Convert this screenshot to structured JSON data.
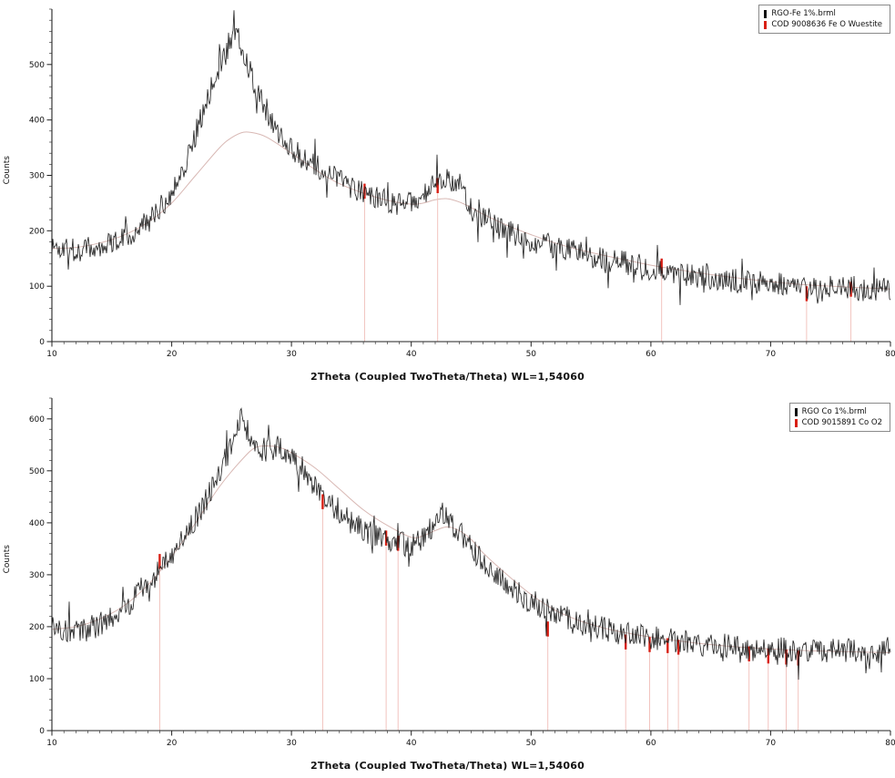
{
  "chart_data": [
    {
      "type": "line",
      "title": "",
      "xlabel": "2Theta (Coupled TwoTheta/Theta) WL=1,54060",
      "ylabel": "Counts",
      "xlim": [
        10,
        80
      ],
      "ylim": [
        0,
        600
      ],
      "x_ticks": [
        10,
        20,
        30,
        40,
        50,
        60,
        70,
        80
      ],
      "y_ticks": [
        0,
        100,
        200,
        300,
        400,
        500
      ],
      "grid": false,
      "legend_position": "top-right",
      "legend": [
        {
          "label": "RGO-Fe 1%.brml",
          "color": "#111111"
        },
        {
          "label": "COD 9008636 Fe O Wuestite",
          "color": "#d81f14"
        }
      ],
      "noise_amplitude": 22,
      "trace_envelope": {
        "x": [
          10,
          11,
          12,
          13,
          14,
          15,
          16,
          17,
          18,
          19,
          20,
          21,
          22,
          23,
          24,
          25,
          25.6,
          26,
          26.5,
          27,
          28,
          29,
          30,
          31,
          32,
          33,
          34,
          35,
          36,
          37,
          38,
          39,
          40,
          41,
          42,
          42.8,
          43.5,
          44,
          45,
          46,
          47,
          48,
          50,
          52,
          54,
          56,
          58,
          60,
          62,
          64,
          66,
          68,
          70,
          72,
          74,
          76,
          78,
          80
        ],
        "y": [
          172,
          168,
          165,
          168,
          172,
          180,
          190,
          200,
          215,
          240,
          270,
          315,
          375,
          440,
          500,
          540,
          548,
          525,
          490,
          455,
          410,
          375,
          350,
          332,
          318,
          305,
          292,
          280,
          268,
          258,
          252,
          248,
          250,
          262,
          285,
          298,
          290,
          272,
          248,
          228,
          210,
          198,
          182,
          170,
          160,
          150,
          142,
          132,
          126,
          119,
          113,
          108,
          104,
          100,
          97,
          99,
          94,
          95
        ]
      },
      "background_curve": {
        "x": [
          10,
          12,
          14,
          16,
          18,
          20,
          22,
          24,
          25,
          26,
          27,
          28,
          30,
          32,
          34,
          36,
          38,
          40,
          41,
          42,
          43,
          44,
          45,
          46,
          48,
          50,
          52,
          54,
          56,
          58,
          60,
          64,
          68,
          72,
          76,
          80
        ],
        "y": [
          168,
          170,
          178,
          192,
          215,
          250,
          300,
          350,
          368,
          378,
          376,
          368,
          340,
          310,
          285,
          268,
          255,
          248,
          250,
          256,
          258,
          252,
          242,
          230,
          210,
          193,
          178,
          166,
          156,
          147,
          138,
          124,
          113,
          104,
          99,
          95
        ]
      },
      "reference_lines": [
        {
          "x": 36.1,
          "intensity": 285
        },
        {
          "x": 42.2,
          "intensity": 295
        },
        {
          "x": 60.9,
          "intensity": 150
        },
        {
          "x": 73.0,
          "intensity": 100
        },
        {
          "x": 76.7,
          "intensity": 108
        }
      ],
      "colors": {
        "trace": "#1c1c1c",
        "background_curve": "#d8b8b4",
        "reference_faint": "#f0bdb8",
        "reference_strong": "#d81f14",
        "axis": "#222222"
      }
    },
    {
      "type": "line",
      "title": "",
      "xlabel": "2Theta (Coupled TwoTheta/Theta) WL=1,54060",
      "ylabel": "Counts",
      "xlim": [
        10,
        80
      ],
      "ylim": [
        0,
        640
      ],
      "x_ticks": [
        10,
        20,
        30,
        40,
        50,
        60,
        70,
        80
      ],
      "y_ticks": [
        0,
        100,
        200,
        300,
        400,
        500,
        600
      ],
      "grid": false,
      "legend_position": "top-right",
      "legend": [
        {
          "label": "RGO Co 1%.brml",
          "color": "#111111"
        },
        {
          "label": "COD 9015891 Co O2",
          "color": "#d81f14"
        }
      ],
      "noise_amplitude": 24,
      "trace_envelope": {
        "x": [
          10,
          11,
          12,
          13,
          14,
          15,
          16,
          17,
          18,
          19,
          20,
          21,
          22,
          23,
          24,
          25,
          25.8,
          26.5,
          27,
          28,
          28.8,
          29.5,
          30,
          31,
          32,
          33,
          34,
          35,
          36,
          37,
          38,
          39,
          40,
          41,
          42,
          42.6,
          43.2,
          44,
          45,
          46,
          47,
          48,
          49,
          50,
          52,
          54,
          56,
          58,
          60,
          62,
          64,
          66,
          68,
          70,
          72,
          74,
          76,
          78,
          80
        ],
        "y": [
          198,
          192,
          190,
          195,
          205,
          220,
          238,
          258,
          280,
          310,
          340,
          375,
          410,
          450,
          495,
          550,
          605,
          570,
          548,
          538,
          545,
          535,
          525,
          498,
          468,
          440,
          420,
          402,
          388,
          376,
          368,
          360,
          356,
          368,
          398,
          415,
          405,
          382,
          352,
          322,
          298,
          278,
          262,
          248,
          225,
          208,
          196,
          186,
          178,
          172,
          168,
          163,
          160,
          157,
          154,
          152,
          155,
          150,
          158
        ]
      },
      "background_curve": {
        "x": [
          10,
          12,
          14,
          16,
          18,
          20,
          22,
          24,
          26,
          27,
          28,
          29,
          30,
          32,
          34,
          36,
          38,
          40,
          41,
          42,
          43,
          44,
          45,
          46,
          48,
          50,
          52,
          54,
          56,
          58,
          60,
          64,
          68,
          72,
          76,
          80
        ],
        "y": [
          195,
          200,
          215,
          240,
          280,
          335,
          400,
          470,
          525,
          545,
          548,
          545,
          535,
          505,
          465,
          425,
          395,
          372,
          375,
          385,
          392,
          385,
          368,
          342,
          300,
          262,
          232,
          212,
          198,
          188,
          180,
          168,
          160,
          155,
          152,
          150
        ]
      },
      "reference_lines": [
        {
          "x": 19.0,
          "intensity": 340
        },
        {
          "x": 32.6,
          "intensity": 455
        },
        {
          "x": 37.9,
          "intensity": 385
        },
        {
          "x": 38.9,
          "intensity": 375
        },
        {
          "x": 51.4,
          "intensity": 210
        },
        {
          "x": 57.9,
          "intensity": 185
        },
        {
          "x": 59.9,
          "intensity": 180
        },
        {
          "x": 61.4,
          "intensity": 178
        },
        {
          "x": 62.3,
          "intensity": 175
        },
        {
          "x": 68.2,
          "intensity": 162
        },
        {
          "x": 69.8,
          "intensity": 158
        },
        {
          "x": 71.3,
          "intensity": 156
        },
        {
          "x": 72.3,
          "intensity": 154
        }
      ],
      "colors": {
        "trace": "#1c1c1c",
        "background_curve": "#d8b8b4",
        "reference_faint": "#f0bdb8",
        "reference_strong": "#d81f14",
        "axis": "#222222"
      }
    }
  ]
}
